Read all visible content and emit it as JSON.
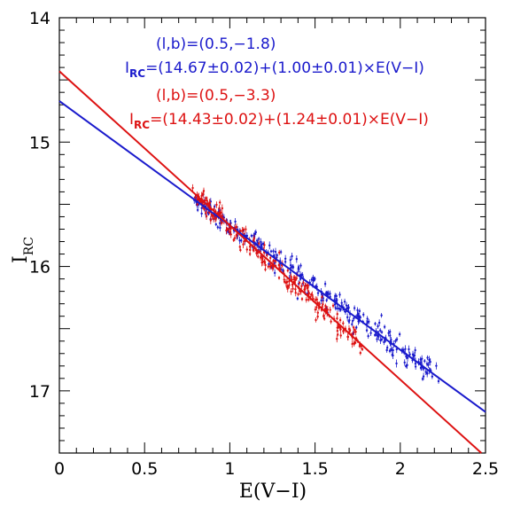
{
  "chart_data": {
    "type": "scatter",
    "xlabel": "E(V−I)",
    "ylabel_main": "I",
    "ylabel_sub": "RC",
    "xlim": [
      0,
      2.5
    ],
    "ylim": [
      17.5,
      14
    ],
    "y_inverted": true,
    "x_ticks": [
      0,
      0.5,
      1,
      1.5,
      2,
      2.5
    ],
    "x_tick_labels": [
      "0",
      "0.5",
      "1",
      "1.5",
      "2",
      "2.5"
    ],
    "y_ticks": [
      14,
      15,
      16,
      17
    ],
    "y_tick_labels": [
      "14",
      "15",
      "16",
      "17"
    ],
    "grid": false,
    "series": [
      {
        "color": "#1a1acc",
        "label_lb": "(l,b)=(0.5,−1.8)",
        "fit_prefix": "I",
        "fit_sub": "RC",
        "fit_rest": "=(14.67±0.02)+(1.00±0.01)×E(V−I)",
        "fit": {
          "intercept": 14.67,
          "slope": 1.0
        },
        "x_range": [
          0.8,
          2.22
        ],
        "n_points": 320,
        "scatter_sigma": 0.05
      },
      {
        "color": "#dd1111",
        "label_lb": "(l,b)=(0.5,−3.3)",
        "fit_prefix": "I",
        "fit_sub": "RC",
        "fit_rest": "=(14.43±0.02)+(1.24±0.01)×E(V−I)",
        "fit": {
          "intercept": 14.43,
          "slope": 1.24
        },
        "x_range": [
          0.8,
          1.78
        ],
        "n_points": 260,
        "scatter_sigma": 0.05
      }
    ]
  }
}
